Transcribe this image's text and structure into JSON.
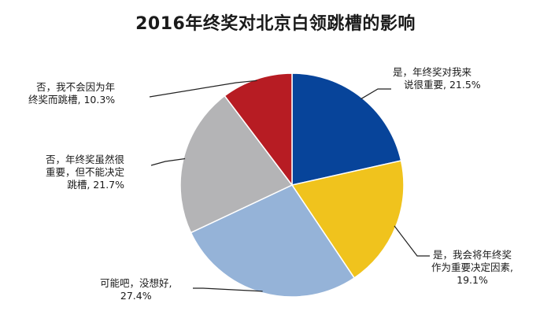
{
  "chart_data": {
    "type": "pie",
    "title": "2016年终奖对北京白领跳槽的影响",
    "start_angle_deg": 0,
    "direction": "clockwise",
    "slices": [
      {
        "label_lines": [
          "是，年终奖对我来",
          "说很重要, 21.5%"
        ],
        "value": 21.5,
        "color": "#07449a"
      },
      {
        "label_lines": [
          "是，我会将年终奖",
          "作为重要决定因素,",
          "19.1%"
        ],
        "value": 19.1,
        "color": "#f0c31d"
      },
      {
        "label_lines": [
          "可能吧，没想好,",
          "27.4%"
        ],
        "value": 27.4,
        "color": "#95b3d8"
      },
      {
        "label_lines": [
          "否，年终奖虽然很",
          "重要，但不能决定",
          "跳槽, 21.7%"
        ],
        "value": 21.7,
        "color": "#b4b4b6"
      },
      {
        "label_lines": [
          "否，我不会因为年",
          "终奖而跳槽, 10.3%"
        ],
        "value": 10.3,
        "color": "#b71c23"
      }
    ]
  }
}
